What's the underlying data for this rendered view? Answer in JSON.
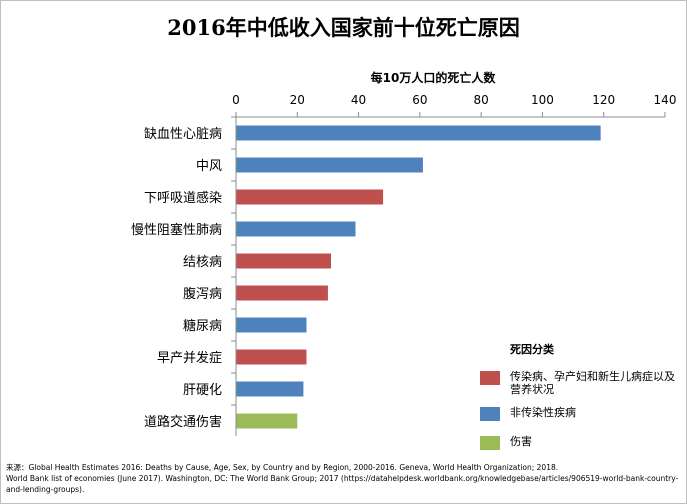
{
  "chart_data": {
    "type": "bar",
    "orientation": "horizontal",
    "title": "2016年中低收入国家前十位死亡原因",
    "xlabel": "每10万人口的死亡人数",
    "xlim": [
      0,
      140
    ],
    "xticks": [
      0,
      20,
      40,
      60,
      80,
      100,
      120,
      140
    ],
    "categories": [
      "缺血性心脏病",
      "中风",
      "下呼吸道感染",
      "慢性阻塞性肺病",
      "结核病",
      "腹泻病",
      "糖尿病",
      "早产并发症",
      "肝硬化",
      "道路交通伤害"
    ],
    "values": [
      119,
      61,
      48,
      39,
      31,
      30,
      23,
      23,
      22,
      20
    ],
    "groups": [
      "noncommunicable",
      "noncommunicable",
      "communicable",
      "noncommunicable",
      "communicable",
      "communicable",
      "noncommunicable",
      "communicable",
      "noncommunicable",
      "injury"
    ],
    "legend_title": "死因分类",
    "legend": [
      {
        "key": "communicable",
        "label": "传染病、孕产妇和新生儿病症以及营养状况",
        "color": "#c0504d"
      },
      {
        "key": "noncommunicable",
        "label": "非传染性疾病",
        "color": "#4f81bd"
      },
      {
        "key": "injury",
        "label": "伤害",
        "color": "#9bbb59"
      }
    ]
  },
  "source": {
    "line1": "来源：Global Health Estimates 2016: Deaths by Cause, Age, Sex, by Country and by Region, 2000-2016. Geneva, World Health Organization; 2018.",
    "line2": "World Bank list of economies (June 2017). Washington, DC: The World Bank Group; 2017 (https://datahelpdesk.worldbank.org/knowledgebase/articles/906519-world-bank-country-and-lending-groups)."
  }
}
